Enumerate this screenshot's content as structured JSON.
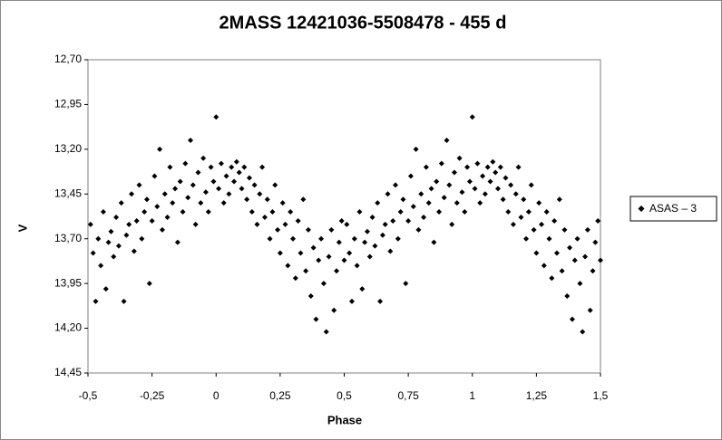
{
  "chart_data": {
    "type": "scatter",
    "title": "2MASS 12421036-5508478 - 455 d",
    "xlabel": "Phase",
    "ylabel": "V",
    "xlim": [
      -0.5,
      1.5
    ],
    "ylim": [
      12.7,
      14.45
    ],
    "y_inverted": true,
    "xticks": [
      {
        "value": -0.5,
        "label": "-0,5"
      },
      {
        "value": -0.25,
        "label": "-0,25"
      },
      0,
      {
        "value": 0.25,
        "label": "0,25"
      },
      {
        "value": 0.5,
        "label": "0,5"
      },
      {
        "value": 0.75,
        "label": "0,75"
      },
      1,
      {
        "value": 1.25,
        "label": "1,25"
      },
      {
        "value": 1.5,
        "label": "1,5"
      }
    ],
    "yticks": [
      {
        "value": 12.7,
        "label": "12,70"
      },
      {
        "value": 12.95,
        "label": "12,95"
      },
      {
        "value": 13.2,
        "label": "13,20"
      },
      {
        "value": 13.45,
        "label": "13,45"
      },
      {
        "value": 13.7,
        "label": "13,70"
      },
      {
        "value": 13.95,
        "label": "13,95"
      },
      {
        "value": 14.2,
        "label": "14,20"
      },
      {
        "value": 14.45,
        "label": "14,45"
      }
    ],
    "legend": "right",
    "x": [
      -0.49,
      -0.48,
      -0.47,
      -0.46,
      -0.45,
      -0.44,
      -0.43,
      -0.42,
      -0.41,
      -0.4,
      -0.39,
      -0.38,
      -0.37,
      -0.36,
      -0.35,
      -0.34,
      -0.33,
      -0.32,
      -0.31,
      -0.3,
      -0.29,
      -0.28,
      -0.27,
      -0.26,
      -0.25,
      -0.24,
      -0.23,
      -0.22,
      -0.21,
      -0.2,
      -0.19,
      -0.18,
      -0.17,
      -0.16,
      -0.15,
      -0.14,
      -0.13,
      -0.12,
      -0.11,
      -0.1,
      -0.09,
      -0.08,
      -0.07,
      -0.06,
      -0.05,
      -0.04,
      -0.03,
      -0.02,
      -0.01,
      0,
      0.01,
      0.02,
      0.03,
      0.04,
      0.05,
      0.06,
      0.07,
      0.08,
      0.09,
      0.1,
      0.11,
      0.12,
      0.13,
      0.14,
      0.15,
      0.16,
      0.17,
      0.18,
      0.19,
      0.2,
      0.21,
      0.22,
      0.23,
      0.24,
      0.25,
      0.26,
      0.27,
      0.28,
      0.29,
      0.3,
      0.31,
      0.32,
      0.33,
      0.34,
      0.35,
      0.36,
      0.37,
      0.38,
      0.39,
      0.4,
      0.41,
      0.42,
      0.43,
      0.44,
      0.45,
      0.46,
      0.47,
      0.48,
      0.49,
      0.5,
      0.51,
      0.52,
      0.53,
      0.54,
      0.55,
      0.56,
      0.57,
      0.58,
      0.59,
      0.6,
      0.61,
      0.62,
      0.63,
      0.64,
      0.65,
      0.66,
      0.67,
      0.68,
      0.69,
      0.7,
      0.71,
      0.72,
      0.73,
      0.74,
      0.75,
      0.76,
      0.77,
      0.78,
      0.79,
      0.8,
      0.81,
      0.82,
      0.83,
      0.84,
      0.85,
      0.86,
      0.87,
      0.88,
      0.89,
      0.9,
      0.91,
      0.92,
      0.93,
      0.94,
      0.95,
      0.96,
      0.97,
      0.98,
      0.99,
      1,
      1.01,
      1.02,
      1.03,
      1.04,
      1.05,
      1.06,
      1.07,
      1.08,
      1.09,
      1.1,
      1.11,
      1.12,
      1.13,
      1.14,
      1.15,
      1.16,
      1.17,
      1.18,
      1.19,
      1.2,
      1.21,
      1.22,
      1.23,
      1.24,
      1.25,
      1.26,
      1.27,
      1.28,
      1.29,
      1.3,
      1.31,
      1.32,
      1.33,
      1.34,
      1.35,
      1.36,
      1.37,
      1.38,
      1.39,
      1.4,
      1.41,
      1.42,
      1.43,
      1.44,
      1.45,
      1.46,
      1.47,
      1.48,
      1.49,
      1.5
    ],
    "series": [
      {
        "name": "ASAS – 3",
        "color": "#000000",
        "marker": "diamond",
        "values": [
          13.62,
          13.78,
          14.05,
          13.7,
          13.85,
          13.55,
          13.98,
          13.72,
          13.66,
          13.8,
          13.58,
          13.74,
          13.5,
          14.05,
          13.68,
          13.62,
          13.45,
          13.77,
          13.6,
          13.4,
          13.7,
          13.55,
          13.48,
          13.95,
          13.6,
          13.35,
          13.52,
          13.2,
          13.65,
          13.45,
          13.58,
          13.3,
          13.5,
          13.42,
          13.72,
          13.38,
          13.55,
          13.28,
          13.47,
          13.15,
          13.4,
          13.62,
          13.33,
          13.5,
          13.25,
          13.44,
          13.55,
          13.3,
          13.38,
          13.02,
          13.42,
          13.28,
          13.5,
          13.35,
          13.45,
          13.3,
          13.38,
          13.27,
          13.33,
          13.42,
          13.3,
          13.48,
          13.36,
          13.55,
          13.4,
          13.62,
          13.45,
          13.3,
          13.58,
          13.48,
          13.7,
          13.55,
          13.4,
          13.65,
          13.78,
          13.5,
          13.62,
          13.85,
          13.55,
          13.7,
          13.92,
          13.6,
          13.78,
          13.48,
          13.88,
          13.65,
          14.02,
          13.75,
          14.15,
          13.82,
          13.7,
          13.95,
          14.22,
          13.8,
          13.65,
          14.1,
          13.88,
          13.72,
          13.6,
          13.82,
          13.62,
          13.78,
          14.05,
          13.7,
          13.85,
          13.55,
          13.98,
          13.72,
          13.66,
          13.8,
          13.58,
          13.74,
          13.5,
          14.05,
          13.68,
          13.62,
          13.45,
          13.77,
          13.6,
          13.4,
          13.7,
          13.55,
          13.48,
          13.95,
          13.6,
          13.35,
          13.52,
          13.2,
          13.65,
          13.45,
          13.58,
          13.3,
          13.5,
          13.42,
          13.72,
          13.38,
          13.55,
          13.28,
          13.47,
          13.15,
          13.4,
          13.62,
          13.33,
          13.5,
          13.25,
          13.44,
          13.55,
          13.3,
          13.38,
          13.02,
          13.42,
          13.28,
          13.5,
          13.35,
          13.45,
          13.3,
          13.38,
          13.27,
          13.33,
          13.42,
          13.3,
          13.48,
          13.36,
          13.55,
          13.4,
          13.62,
          13.45,
          13.3,
          13.58,
          13.48,
          13.7,
          13.55,
          13.4,
          13.65,
          13.78,
          13.5,
          13.62,
          13.85,
          13.55,
          13.7,
          13.92,
          13.6,
          13.78,
          13.48,
          13.88,
          13.65,
          14.02,
          13.75,
          14.15,
          13.82,
          13.7,
          13.95,
          14.22,
          13.8,
          13.65,
          14.1,
          13.88,
          13.72,
          13.6,
          13.82
        ]
      }
    ]
  }
}
